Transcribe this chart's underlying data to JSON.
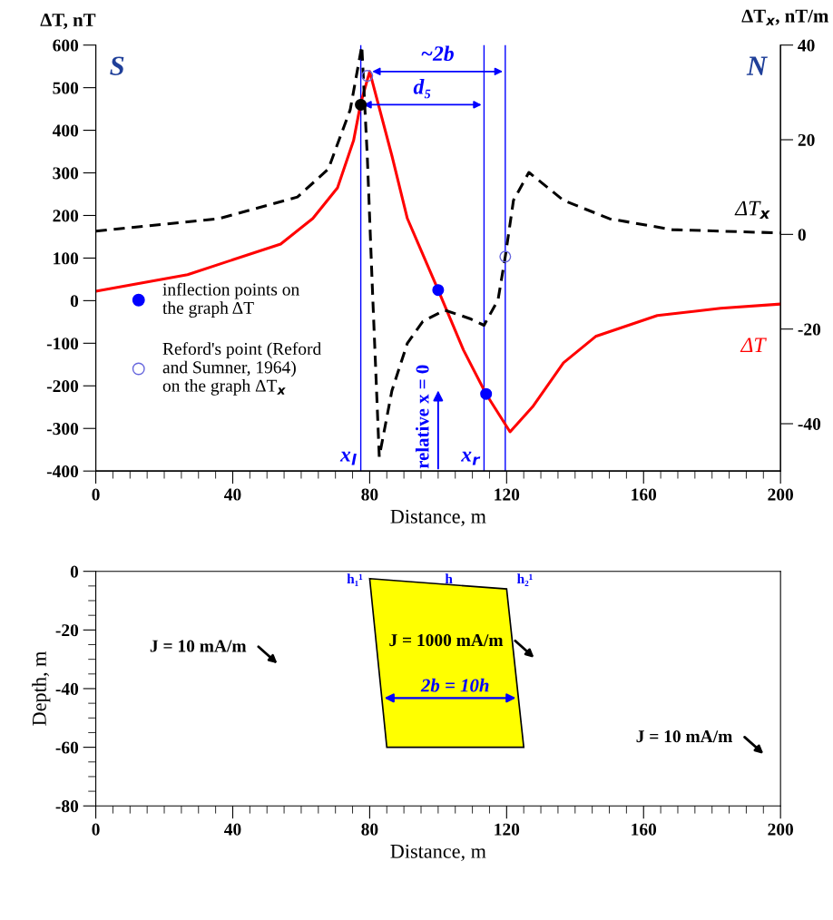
{
  "chart_data": [
    {
      "type": "line",
      "xlabel": "Distance, m",
      "ylabel": "ΔT, nT",
      "y2label": "ΔT$_{x}$, nT/m",
      "xlim": [
        0,
        200
      ],
      "xticks": [
        0,
        40,
        80,
        120,
        160,
        200
      ],
      "ylim": [
        -400,
        600
      ],
      "yticks": [
        -400,
        -300,
        -200,
        -100,
        0,
        100,
        200,
        300,
        400,
        500,
        600
      ],
      "y2lim": [
        -50,
        40
      ],
      "y2ticks": [
        -40,
        -20,
        0,
        20,
        40
      ],
      "legend": "bottom left",
      "series": [
        {
          "name": "ΔT",
          "color": "#ff0000",
          "line_style": "solid",
          "x": [
            0,
            26.8,
            54,
            63.4,
            70.6,
            75.3,
            77.4,
            80,
            86.5,
            91,
            100,
            107.4,
            114,
            121,
            127.6,
            136.6,
            146,
            164,
            182.5,
            200
          ],
          "values": [
            22,
            61,
            133,
            193,
            265,
            376,
            464,
            538,
            340,
            193,
            25,
            -116,
            -219,
            -308,
            -249,
            -146,
            -84,
            -35,
            -18,
            -8
          ]
        },
        {
          "name": "ΔT$_{x}$",
          "color": "#000000",
          "line_style": "dashed",
          "axis": "y2",
          "x": [
            0,
            35.8,
            58.9,
            67.9,
            74.3,
            77.7,
            79.3,
            80.7,
            82.8,
            86.5,
            91,
            95.5,
            101.9,
            109.3,
            113.4,
            117.5,
            119.6,
            122,
            126.5,
            136.6,
            150.1,
            168.4,
            200
          ],
          "values": [
            0.7,
            3.3,
            7.9,
            13.8,
            26.3,
            39.8,
            16.5,
            -9.8,
            -47,
            -33,
            -23,
            -18.4,
            -16,
            -17.8,
            -19.2,
            -13.8,
            -4.7,
            7.2,
            13.1,
            7.2,
            3.3,
            1,
            0.3
          ]
        },
        {
          "type": "scatter",
          "name": "inflection points on\nthe graph ΔT",
          "color": "#0000ff",
          "marker": "circle",
          "x": [
            100,
            114
          ],
          "values": [
            25,
            -219
          ]
        },
        {
          "type": "scatter",
          "color": "#000000",
          "marker": "circle",
          "x": [
            77.4
          ],
          "values": [
            460
          ]
        },
        {
          "type": "scatter",
          "name": "Reford's point (Reford\nand Sumner, 1964)\non the graph ΔT$_{x}$",
          "color": "#6666dd",
          "marker": "circle",
          "axis": "y2",
          "x": [
            79.3,
            119.6
          ],
          "values": [
            33.5,
            -4.7
          ]
        }
      ],
      "ref_lines": [
        {
          "axis": "x",
          "value": 77.4,
          "label": "x$_{l}$",
          "color": "#0000ff"
        },
        {
          "axis": "x",
          "value": 113.4,
          "label": "x$_{r}$",
          "color": "#0000ff"
        },
        {
          "axis": "x",
          "value": 119.6,
          "label": null,
          "color": "#0000ff"
        }
      ],
      "annotations": [
        "S",
        "N",
        "relative x = 0",
        {
          "text": "~2b",
          "x": 80,
          "y": 538
        },
        {
          "text": "d₅",
          "x": 77.4,
          "y": 460
        }
      ]
    },
    {
      "type": "area",
      "xlabel": "Distance, m",
      "ylabel": "Depth, m",
      "xlim": [
        0,
        200
      ],
      "xticks": [
        0,
        40,
        80,
        120,
        160,
        200
      ],
      "ylim": [
        -80,
        0
      ],
      "yticks": [
        -80,
        -60,
        -40,
        -20,
        0
      ],
      "series": [
        {
          "color": "#ffff00",
          "x": [
            80,
            120,
            125,
            85
          ],
          "values": [
            -2.5,
            -6,
            -60,
            -60
          ]
        }
      ],
      "annotations": [
        "J = 10 mA/m",
        "J = 1000 mA/m",
        "J = 10 mA/m",
        "2b = 10h",
        "h₁¹",
        "h",
        "h₂¹"
      ]
    }
  ]
}
